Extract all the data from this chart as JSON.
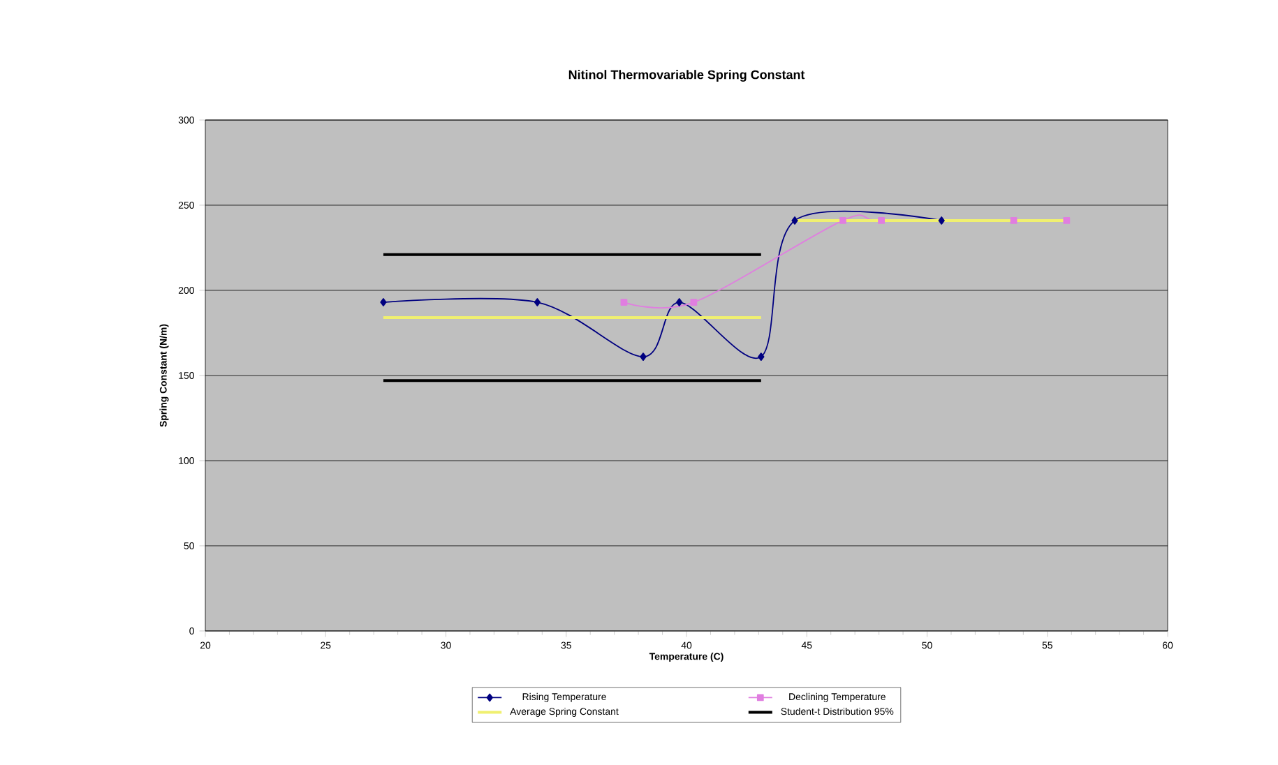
{
  "chart_data": {
    "type": "line",
    "title": "Nitinol Thermovariable Spring Constant",
    "xlabel": "Temperature (C)",
    "ylabel": "Spring Constant (N/m)",
    "xlim": [
      20,
      60
    ],
    "xticks": [
      20,
      25,
      30,
      35,
      40,
      45,
      50,
      55,
      60
    ],
    "ylim": [
      0,
      300
    ],
    "yticks": [
      0,
      50,
      100,
      150,
      200,
      250,
      300
    ],
    "grid": "y",
    "legend": "bottom",
    "series": [
      {
        "name": "Rising Temperature",
        "color": "#000080",
        "marker": "diamond",
        "x": [
          27.4,
          33.8,
          38.2,
          39.7,
          43.1,
          44.5,
          50.6
        ],
        "values": [
          193,
          193,
          161,
          193,
          161,
          241,
          241
        ]
      },
      {
        "name": "Declining Temperature",
        "color": "#e07ee0",
        "marker": "square",
        "x": [
          37.4,
          40.3,
          46.5,
          48.1,
          53.6,
          55.8
        ],
        "values": [
          193,
          193,
          241,
          241,
          241,
          241
        ]
      },
      {
        "name": "Average Spring Constant",
        "color": "#f0f070",
        "marker": "none",
        "x": [
          27.4,
          43.1
        ],
        "values": [
          184,
          184
        ]
      },
      {
        "color": "#f0f070",
        "marker": "none",
        "x": [
          44.5,
          55.8
        ],
        "values": [
          241,
          241
        ]
      },
      {
        "name": "Student-t Distribution 95%",
        "color": "#000000",
        "marker": "none",
        "x": [
          27.4,
          43.1
        ],
        "values": [
          221,
          221
        ]
      },
      {
        "color": "#000000",
        "marker": "none",
        "x": [
          27.4,
          43.1
        ],
        "values": [
          147,
          147
        ]
      }
    ]
  }
}
